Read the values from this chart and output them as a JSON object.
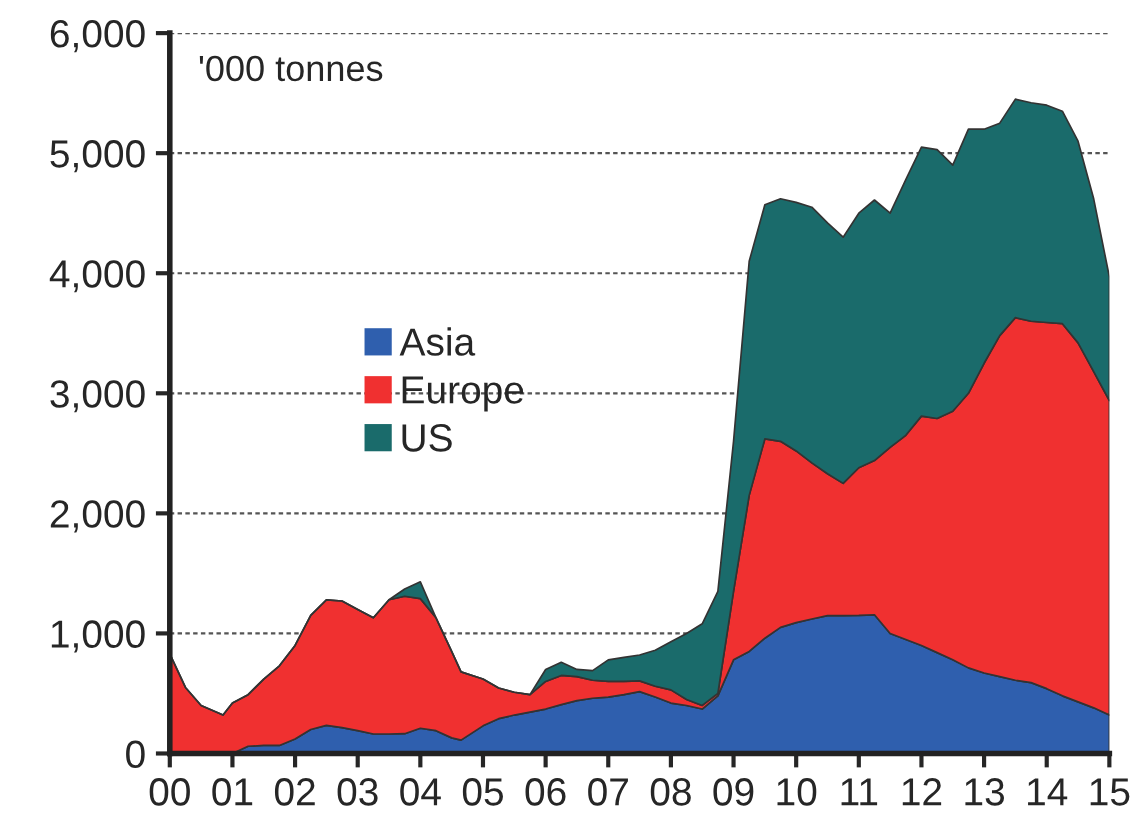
{
  "chart_data": {
    "type": "area",
    "stacked": true,
    "x": [
      0,
      0.25,
      0.5,
      0.85,
      1,
      1.25,
      1.5,
      1.75,
      2,
      2.25,
      2.5,
      2.75,
      3,
      3.25,
      3.5,
      3.75,
      4,
      4.25,
      4.5,
      4.65,
      5,
      5.25,
      5.5,
      5.75,
      6,
      6.25,
      6.5,
      6.75,
      7,
      7.25,
      7.5,
      7.75,
      8,
      8.25,
      8.5,
      8.75,
      9,
      9.25,
      9.5,
      9.75,
      10,
      10.25,
      10.5,
      10.75,
      11,
      11.25,
      11.5,
      11.75,
      12,
      12.25,
      12.5,
      12.75,
      13,
      13.25,
      13.5,
      13.75,
      14,
      14.25,
      14.5,
      14.75,
      15
    ],
    "series": [
      {
        "name": "Asia",
        "color": "#2f5fae",
        "values": [
          0,
          0,
          0,
          0,
          0,
          60,
          67,
          67,
          120,
          200,
          234,
          215,
          190,
          162,
          162,
          165,
          210,
          190,
          130,
          111,
          230,
          290,
          320,
          345,
          370,
          407,
          440,
          460,
          470,
          490,
          515,
          470,
          420,
          400,
          370,
          480,
          780,
          850,
          960,
          1050,
          1090,
          1120,
          1148,
          1148,
          1150,
          1155,
          1000,
          950,
          900,
          840,
          780,
          713,
          670,
          640,
          610,
          590,
          540,
          480,
          430,
          380,
          320
        ]
      },
      {
        "name": "Europe",
        "color": "#f03030",
        "values": [
          830,
          550,
          400,
          320,
          420,
          430,
          553,
          663,
          780,
          950,
          1046,
          1055,
          1010,
          968,
          1118,
          1145,
          1080,
          940,
          720,
          569,
          390,
          255,
          190,
          145,
          230,
          243,
          200,
          150,
          130,
          110,
          90,
          90,
          110,
          50,
          30,
          20,
          570,
          1300,
          1660,
          1550,
          1430,
          1300,
          1182,
          1102,
          1230,
          1285,
          1550,
          1700,
          1910,
          1950,
          2070,
          2287,
          2580,
          2840,
          3020,
          3010,
          3050,
          3100,
          2990,
          2800,
          2620
        ]
      },
      {
        "name": "US",
        "color": "#1a6b6b",
        "values": [
          0,
          0,
          0,
          0,
          0,
          0,
          0,
          0,
          0,
          0,
          0,
          0,
          0,
          0,
          0,
          60,
          140,
          0,
          0,
          0,
          0,
          0,
          0,
          0,
          100,
          110,
          60,
          80,
          180,
          200,
          215,
          300,
          400,
          550,
          680,
          850,
          1250,
          1950,
          1950,
          2020,
          2070,
          2130,
          2090,
          2050,
          2120,
          2170,
          1950,
          2130,
          2240,
          2240,
          2050,
          2200,
          1950,
          1770,
          1820,
          1820,
          1810,
          1770,
          1680,
          1440,
          1030
        ]
      }
    ],
    "xlim": [
      0,
      15
    ],
    "xticks": [
      {
        "value": 0,
        "label": "00"
      },
      {
        "value": 1,
        "label": "01"
      },
      {
        "value": 2,
        "label": "02"
      },
      {
        "value": 3,
        "label": "03"
      },
      {
        "value": 4,
        "label": "04"
      },
      {
        "value": 5,
        "label": "05"
      },
      {
        "value": 6,
        "label": "06"
      },
      {
        "value": 7,
        "label": "07"
      },
      {
        "value": 8,
        "label": "08"
      },
      {
        "value": 9,
        "label": "09"
      },
      {
        "value": 10,
        "label": "10"
      },
      {
        "value": 11,
        "label": "11"
      },
      {
        "value": 12,
        "label": "12"
      },
      {
        "value": 13,
        "label": "13"
      },
      {
        "value": 14,
        "label": "14"
      },
      {
        "value": 15,
        "label": "15"
      }
    ],
    "ylim": [
      0,
      6000
    ],
    "yticks": [
      {
        "value": 0,
        "label": "0"
      },
      {
        "value": 1000,
        "label": "1,000"
      },
      {
        "value": 2000,
        "label": "2,000"
      },
      {
        "value": 3000,
        "label": "3,000"
      },
      {
        "value": 4000,
        "label": "4,000"
      },
      {
        "value": 5000,
        "label": "5,000"
      },
      {
        "value": 6000,
        "label": "6,000"
      }
    ],
    "annotations": [
      "'000 tonnes"
    ],
    "grid": "y",
    "legend": "center left"
  }
}
